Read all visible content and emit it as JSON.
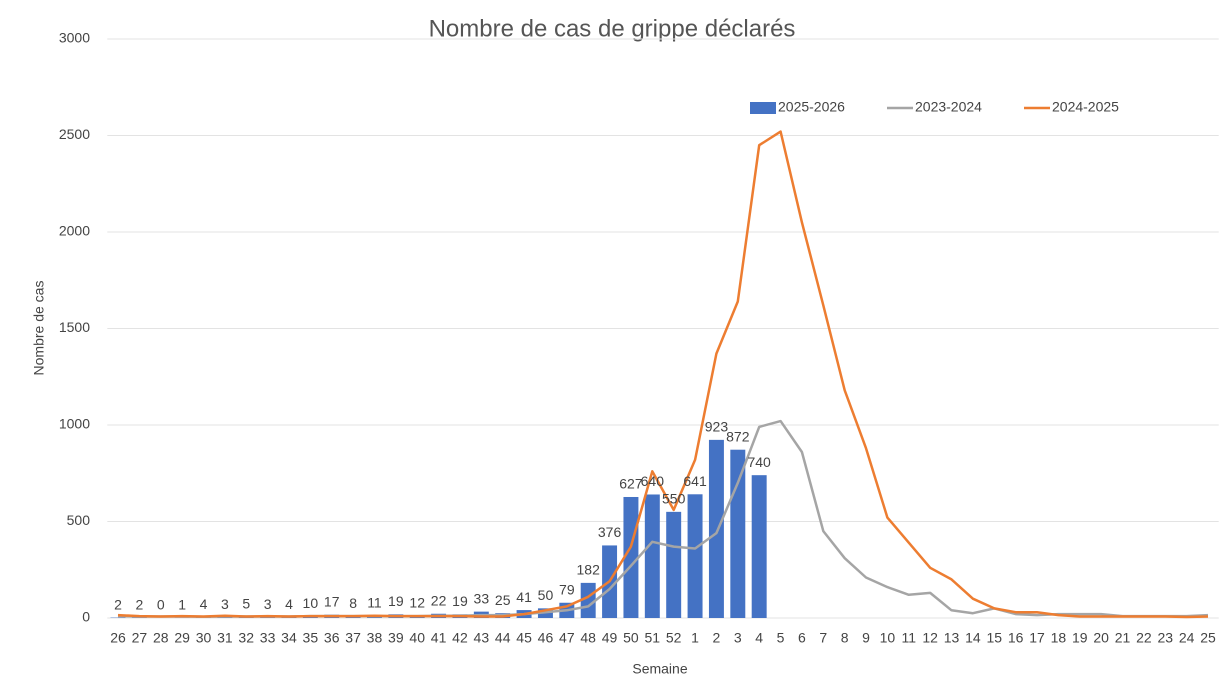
{
  "chart_data": {
    "type": "bar-line",
    "title": "Nombre de cas de grippe déclarés",
    "x_label": "Semaine",
    "y_label": "Nombre de cas",
    "categories": [
      "26",
      "27",
      "28",
      "29",
      "30",
      "31",
      "32",
      "33",
      "34",
      "35",
      "36",
      "37",
      "38",
      "39",
      "40",
      "41",
      "42",
      "43",
      "44",
      "45",
      "46",
      "47",
      "48",
      "49",
      "50",
      "51",
      "52",
      "1",
      "2",
      "3",
      "4",
      "5",
      "6",
      "7",
      "8",
      "9",
      "10",
      "11",
      "12",
      "13",
      "14",
      "15",
      "16",
      "17",
      "18",
      "19",
      "20",
      "21",
      "22",
      "23",
      "24",
      "25"
    ],
    "series": [
      {
        "name": "2025-2026",
        "type": "bar",
        "color": "#4472c4",
        "values": [
          2,
          2,
          0,
          1,
          4,
          3,
          5,
          3,
          4,
          10,
          17,
          8,
          11,
          19,
          12,
          22,
          19,
          33,
          25,
          41,
          50,
          79,
          182,
          376,
          627,
          640,
          550,
          641,
          923,
          872,
          740,
          null,
          null,
          null,
          null,
          null,
          null,
          null,
          null,
          null,
          null,
          null,
          null,
          null,
          null,
          null,
          null,
          null,
          null,
          null,
          null,
          null
        ]
      },
      {
        "name": "2023-2024",
        "type": "line",
        "color": "#a5a5a5",
        "values": [
          10,
          8,
          8,
          8,
          6,
          8,
          8,
          8,
          8,
          10,
          10,
          10,
          10,
          10,
          10,
          12,
          12,
          15,
          15,
          20,
          30,
          40,
          60,
          150,
          270,
          395,
          370,
          360,
          440,
          700,
          990,
          1020,
          860,
          450,
          310,
          210,
          160,
          120,
          130,
          40,
          25,
          50,
          20,
          15,
          20,
          20,
          20,
          10,
          10,
          10,
          10,
          15
        ]
      },
      {
        "name": "2024-2025",
        "type": "line",
        "color": "#ed7d31",
        "values": [
          15,
          10,
          8,
          10,
          8,
          12,
          8,
          10,
          8,
          10,
          10,
          10,
          12,
          10,
          10,
          10,
          10,
          8,
          8,
          20,
          40,
          60,
          110,
          190,
          370,
          760,
          560,
          820,
          1370,
          1640,
          2450,
          2520,
          2050,
          1620,
          1180,
          880,
          520,
          390,
          260,
          200,
          100,
          50,
          30,
          30,
          15,
          8,
          8,
          8,
          8,
          8,
          5,
          8
        ]
      }
    ],
    "ylim": [
      0,
      3000
    ],
    "yticks": [
      0,
      500,
      1000,
      1500,
      2000,
      2500,
      3000
    ],
    "grid": true,
    "legend": "top"
  }
}
